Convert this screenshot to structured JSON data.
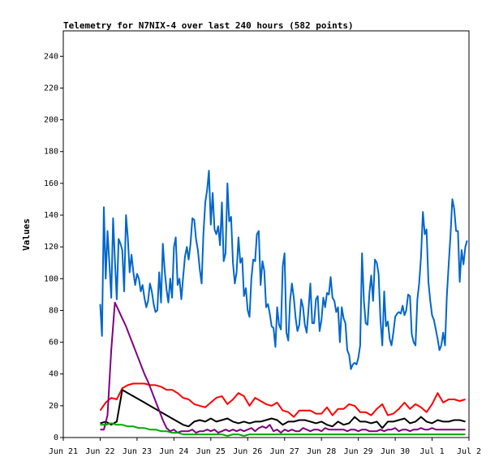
{
  "chart_data": {
    "type": "line",
    "title": "Telemetry for N7NIX-4 over last 240 hours (582 points)",
    "xlabel": "",
    "ylabel": "Values",
    "x_ticks": [
      "Jun 21",
      "Jun 22",
      "Jun 23",
      "Jun 24",
      "Jun 25",
      "Jun 26",
      "Jun 27",
      "Jun 28",
      "Jun 29",
      "Jun 30",
      "Jul 1",
      "Jul 2"
    ],
    "y_ticks": [
      0,
      20,
      40,
      60,
      80,
      100,
      120,
      140,
      160,
      180,
      200,
      220,
      240
    ],
    "xlim": [
      0,
      11
    ],
    "ylim": [
      0,
      256
    ],
    "grid": false,
    "legend": "none",
    "series": [
      {
        "color": "#0066cc",
        "x": [
          1.0,
          1.05,
          1.1,
          1.15,
          1.2,
          1.25,
          1.3,
          1.35,
          1.4,
          1.45,
          1.5,
          1.55,
          1.6,
          1.65,
          1.7,
          1.75,
          1.8,
          1.85,
          1.9,
          1.95,
          2.0,
          2.05,
          2.1,
          2.15,
          2.2,
          2.25,
          2.3,
          2.35,
          2.4,
          2.45,
          2.5,
          2.55,
          2.6,
          2.65,
          2.7,
          2.75,
          2.8,
          2.85,
          2.9,
          2.95,
          3.0,
          3.05,
          3.1,
          3.15,
          3.2,
          3.25,
          3.3,
          3.35,
          3.4,
          3.45,
          3.5,
          3.55,
          3.6,
          3.65,
          3.7,
          3.75,
          3.8,
          3.85,
          3.9,
          3.95,
          4.0,
          4.05,
          4.1,
          4.15,
          4.2,
          4.25,
          4.3,
          4.35,
          4.4,
          4.45,
          4.5,
          4.55,
          4.6,
          4.65,
          4.7,
          4.75,
          4.8,
          4.85,
          4.9,
          4.95,
          5.0,
          5.05,
          5.1,
          5.15,
          5.2,
          5.25,
          5.3,
          5.35,
          5.4,
          5.45,
          5.5,
          5.55,
          5.6,
          5.65,
          5.7,
          5.75,
          5.8,
          5.85,
          5.9,
          5.95,
          6.0,
          6.05,
          6.1,
          6.15,
          6.2,
          6.25,
          6.3,
          6.35,
          6.4,
          6.45,
          6.5,
          6.55,
          6.6,
          6.65,
          6.7,
          6.75,
          6.8,
          6.85,
          6.9,
          6.95,
          7.0,
          7.05,
          7.1,
          7.15,
          7.2,
          7.25,
          7.3,
          7.35,
          7.4,
          7.45,
          7.5,
          7.55,
          7.6,
          7.65,
          7.7,
          7.75,
          7.8,
          7.85,
          7.9,
          7.95,
          8.0,
          8.05,
          8.1,
          8.15,
          8.2,
          8.25,
          8.3,
          8.35,
          8.4,
          8.45,
          8.5,
          8.55,
          8.6,
          8.65,
          8.7,
          8.75,
          8.8,
          8.85,
          8.9,
          8.95,
          9.0,
          9.05,
          9.1,
          9.15,
          9.2,
          9.25,
          9.3,
          9.35,
          9.4,
          9.45,
          9.5,
          9.55,
          9.6,
          9.65,
          9.7,
          9.75,
          9.8,
          9.85,
          9.9,
          9.95,
          10.0,
          10.05,
          10.1,
          10.15,
          10.2,
          10.25,
          10.3,
          10.35,
          10.4,
          10.45,
          10.5,
          10.55,
          10.6,
          10.65,
          10.7,
          10.75,
          10.8,
          10.85,
          10.9,
          10.95
        ],
        "values": [
          84,
          64,
          145,
          100,
          130,
          110,
          88,
          138,
          112,
          87,
          125,
          122,
          118,
          92,
          140,
          126,
          104,
          115,
          104,
          96,
          103,
          100,
          92,
          96,
          88,
          82,
          86,
          97,
          92,
          84,
          79,
          80,
          104,
          85,
          122,
          105,
          93,
          85,
          100,
          88,
          120,
          126,
          96,
          100,
          87,
          101,
          114,
          120,
          112,
          122,
          138,
          137,
          125,
          118,
          106,
          97,
          128,
          148,
          156,
          168,
          134,
          154,
          131,
          128,
          133,
          121,
          148,
          111,
          116,
          160,
          136,
          139,
          110,
          97,
          104,
          126,
          110,
          113,
          89,
          94,
          80,
          76,
          100,
          112,
          111,
          128,
          130,
          96,
          111,
          105,
          82,
          84,
          78,
          70,
          69,
          57,
          82,
          71,
          68,
          108,
          116,
          66,
          61,
          86,
          97,
          88,
          75,
          67,
          71,
          87,
          82,
          71,
          66,
          81,
          97,
          72,
          72,
          87,
          89,
          67,
          74,
          88,
          82,
          91,
          90,
          101,
          88,
          86,
          79,
          82,
          60,
          82,
          75,
          72,
          55,
          52,
          43,
          46,
          47,
          46,
          50,
          58,
          116,
          86,
          72,
          71,
          91,
          102,
          86,
          112,
          110,
          103,
          74,
          58,
          92,
          70,
          73,
          62,
          58,
          66,
          76,
          78,
          79,
          78,
          83,
          77,
          80,
          90,
          89,
          65,
          60,
          58,
          87,
          97,
          114,
          142,
          128,
          131,
          98,
          86,
          77,
          74,
          68,
          62,
          55,
          58,
          66,
          58,
          89,
          109,
          128,
          150,
          144,
          130,
          130,
          98,
          118,
          109,
          120,
          124
        ]
      },
      {
        "color": "#ff0000",
        "x": [
          1.0,
          1.15,
          1.3,
          1.45,
          1.6,
          1.75,
          1.9,
          2.05,
          2.2,
          2.35,
          2.5,
          2.65,
          2.8,
          2.95,
          3.1,
          3.25,
          3.4,
          3.55,
          3.7,
          3.85,
          4.0,
          4.15,
          4.3,
          4.45,
          4.6,
          4.75,
          4.9,
          5.05,
          5.2,
          5.35,
          5.5,
          5.65,
          5.8,
          5.95,
          6.1,
          6.25,
          6.4,
          6.55,
          6.7,
          6.85,
          7.0,
          7.15,
          7.3,
          7.45,
          7.6,
          7.75,
          7.9,
          8.05,
          8.2,
          8.35,
          8.5,
          8.65,
          8.8,
          8.95,
          9.1,
          9.25,
          9.4,
          9.55,
          9.7,
          9.85,
          10.0,
          10.15,
          10.3,
          10.45,
          10.6,
          10.75,
          10.9
        ],
        "values": [
          17,
          22,
          25,
          24,
          31,
          33,
          34,
          34,
          34,
          33,
          33,
          32,
          30,
          30,
          28,
          25,
          24,
          21,
          20,
          19,
          22,
          25,
          26,
          21,
          24,
          28,
          26,
          20,
          25,
          23,
          21,
          20,
          22,
          17,
          16,
          13,
          17,
          17,
          17,
          15,
          15,
          19,
          14,
          18,
          18,
          21,
          20,
          16,
          16,
          14,
          18,
          21,
          14,
          15,
          18,
          22,
          18,
          21,
          19,
          16,
          21,
          28,
          22,
          24,
          24,
          23,
          24
        ]
      },
      {
        "color": "#000000",
        "x": [
          1.0,
          1.15,
          1.3,
          1.45,
          1.6,
          1.75,
          1.9,
          2.05,
          2.2,
          2.35,
          2.5,
          2.65,
          2.8,
          2.95,
          3.1,
          3.25,
          3.4,
          3.55,
          3.7,
          3.85,
          4.0,
          4.15,
          4.3,
          4.45,
          4.6,
          4.75,
          4.9,
          5.05,
          5.2,
          5.35,
          5.5,
          5.65,
          5.8,
          5.95,
          6.1,
          6.25,
          6.4,
          6.55,
          6.7,
          6.85,
          7.0,
          7.15,
          7.3,
          7.45,
          7.6,
          7.75,
          7.9,
          8.05,
          8.2,
          8.35,
          8.5,
          8.65,
          8.8,
          8.95,
          9.1,
          9.25,
          9.4,
          9.55,
          9.7,
          9.85,
          10.0,
          10.15,
          10.3,
          10.45,
          10.6,
          10.75,
          10.9
        ],
        "values": [
          9,
          10,
          8,
          10,
          30,
          28,
          26,
          24,
          22,
          20,
          18,
          16,
          14,
          12,
          10,
          8,
          7,
          10,
          11,
          10,
          12,
          10,
          11,
          12,
          10,
          9,
          10,
          9,
          10,
          10,
          11,
          12,
          11,
          8,
          10,
          10,
          11,
          11,
          10,
          9,
          10,
          8,
          7,
          10,
          8,
          9,
          13,
          10,
          10,
          9,
          10,
          6,
          10,
          10,
          11,
          12,
          9,
          10,
          13,
          10,
          9,
          11,
          10,
          10,
          11,
          11,
          10
        ]
      },
      {
        "color": "#800080",
        "x": [
          1.0,
          1.1,
          1.2,
          1.3,
          1.4,
          1.5,
          1.6,
          1.7,
          1.8,
          1.9,
          2.0,
          2.1,
          2.2,
          2.3,
          2.4,
          2.5,
          2.6,
          2.7,
          2.8,
          2.9,
          3.0,
          3.1,
          3.2,
          3.3,
          3.4,
          3.5,
          3.6,
          3.7,
          3.8,
          3.9,
          4.0,
          4.1,
          4.2,
          4.3,
          4.4,
          4.5,
          4.6,
          4.7,
          4.8,
          4.9,
          5.0,
          5.1,
          5.2,
          5.3,
          5.4,
          5.5,
          5.6,
          5.7,
          5.8,
          5.9,
          6.0,
          6.1,
          6.2,
          6.3,
          6.4,
          6.5,
          6.6,
          6.7,
          6.8,
          6.9,
          7.0,
          7.1,
          7.2,
          7.3,
          7.4,
          7.5,
          7.6,
          7.7,
          7.8,
          7.9,
          8.0,
          8.1,
          8.2,
          8.3,
          8.4,
          8.5,
          8.6,
          8.7,
          8.8,
          8.9,
          9.0,
          9.1,
          9.2,
          9.3,
          9.4,
          9.5,
          9.6,
          9.7,
          9.8,
          9.9,
          10.0,
          10.1,
          10.2,
          10.3,
          10.4,
          10.5,
          10.6,
          10.7,
          10.8,
          10.9
        ],
        "values": [
          5,
          5,
          14,
          55,
          85,
          80,
          75,
          70,
          64,
          58,
          52,
          46,
          40,
          35,
          29,
          23,
          17,
          11,
          6,
          4,
          5,
          3,
          4,
          4,
          4,
          5,
          3,
          4,
          4,
          5,
          4,
          5,
          3,
          4,
          5,
          4,
          5,
          4,
          5,
          4,
          5,
          6,
          4,
          6,
          7,
          6,
          8,
          4,
          5,
          3,
          5,
          4,
          5,
          4,
          4,
          6,
          5,
          4,
          5,
          5,
          4,
          6,
          5,
          5,
          5,
          5,
          5,
          4,
          5,
          5,
          4,
          5,
          5,
          4,
          4,
          4,
          5,
          4,
          5,
          5,
          6,
          4,
          5,
          5,
          4,
          5,
          5,
          6,
          5,
          5,
          6,
          5,
          5,
          5,
          5,
          5,
          5,
          5,
          5,
          5
        ]
      },
      {
        "color": "#00aa00",
        "x": [
          1.0,
          1.15,
          1.3,
          1.45,
          1.6,
          1.75,
          1.9,
          2.05,
          2.2,
          2.35,
          2.5,
          2.65,
          2.8,
          2.95,
          3.1,
          3.25,
          3.4,
          3.55,
          3.7,
          3.85,
          4.0,
          4.15,
          4.3,
          4.45,
          4.6,
          4.75,
          4.9,
          5.05,
          5.2,
          5.35,
          5.5,
          5.65,
          5.8,
          5.95,
          6.1,
          6.25,
          6.4,
          6.55,
          6.7,
          6.85,
          7.0,
          7.15,
          7.3,
          7.45,
          7.6,
          7.75,
          7.9,
          8.05,
          8.2,
          8.35,
          8.5,
          8.65,
          8.8,
          8.95,
          9.1,
          9.25,
          9.4,
          9.55,
          9.7,
          9.85,
          10.0,
          10.15,
          10.3,
          10.45,
          10.6,
          10.75,
          10.9
        ],
        "values": [
          8,
          8,
          9,
          8,
          8,
          7,
          7,
          6,
          6,
          5,
          5,
          4,
          4,
          3,
          3,
          2,
          2,
          2,
          2,
          2,
          2,
          2,
          2,
          1,
          2,
          2,
          1,
          2,
          2,
          2,
          2,
          2,
          2,
          2,
          2,
          2,
          2,
          2,
          2,
          2,
          2,
          2,
          2,
          2,
          2,
          2,
          2,
          2,
          2,
          2,
          2,
          2,
          2,
          2,
          2,
          2,
          2,
          2,
          2,
          2,
          2,
          2,
          2,
          2,
          2,
          2,
          2
        ]
      }
    ]
  }
}
